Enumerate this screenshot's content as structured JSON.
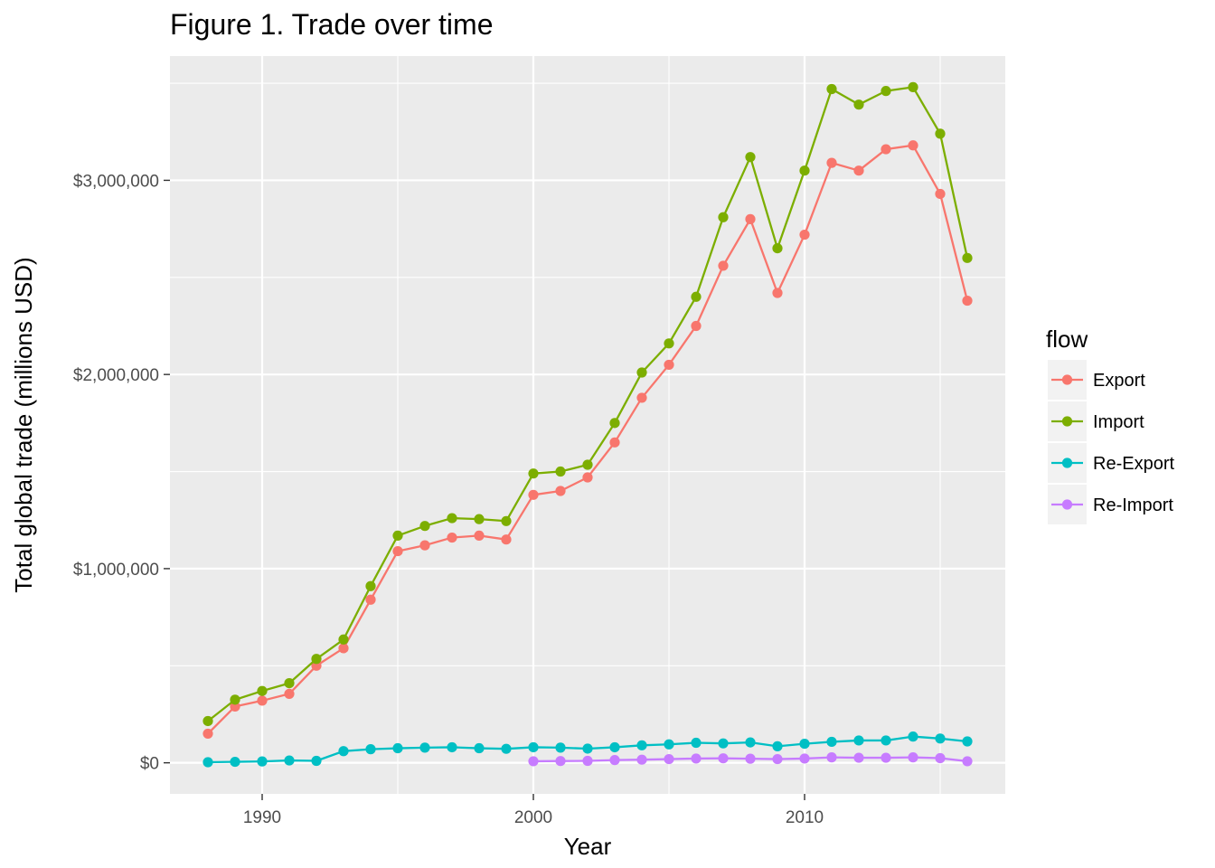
{
  "chart_data": {
    "type": "line",
    "title": "Figure 1. Trade over time",
    "xlabel": "Year",
    "ylabel": "Total global trade (millions USD)",
    "xlim": [
      1986.6,
      2017.4
    ],
    "ylim": [
      -160000,
      3640000
    ],
    "x_ticks": [
      1990,
      2000,
      2010
    ],
    "x_tick_labels": [
      "1990",
      "2000",
      "2010"
    ],
    "y_ticks": [
      0,
      1000000,
      2000000,
      3000000
    ],
    "y_tick_labels": [
      "$0",
      "$1,000,000",
      "$2,000,000",
      "$3,000,000"
    ],
    "grid": true,
    "legend": {
      "title": "flow",
      "position": "right"
    },
    "series": [
      {
        "name": "Export",
        "color": "#F8766D",
        "x": [
          1988,
          1989,
          1990,
          1991,
          1992,
          1993,
          1994,
          1995,
          1996,
          1997,
          1998,
          1999,
          2000,
          2001,
          2002,
          2003,
          2004,
          2005,
          2006,
          2007,
          2008,
          2009,
          2010,
          2011,
          2012,
          2013,
          2014,
          2015,
          2016
        ],
        "values": [
          150000,
          290000,
          320000,
          355000,
          500000,
          590000,
          840000,
          1090000,
          1120000,
          1160000,
          1170000,
          1150000,
          1380000,
          1400000,
          1470000,
          1650000,
          1880000,
          2050000,
          2250000,
          2560000,
          2800000,
          2420000,
          2720000,
          3090000,
          3050000,
          3160000,
          3180000,
          2930000,
          2380000
        ]
      },
      {
        "name": "Import",
        "color": "#7CAE00",
        "x": [
          1988,
          1989,
          1990,
          1991,
          1992,
          1993,
          1994,
          1995,
          1996,
          1997,
          1998,
          1999,
          2000,
          2001,
          2002,
          2003,
          2004,
          2005,
          2006,
          2007,
          2008,
          2009,
          2010,
          2011,
          2012,
          2013,
          2014,
          2015,
          2016
        ],
        "values": [
          215000,
          325000,
          370000,
          410000,
          535000,
          635000,
          910000,
          1170000,
          1220000,
          1260000,
          1255000,
          1245000,
          1490000,
          1500000,
          1535000,
          1750000,
          2010000,
          2160000,
          2400000,
          2810000,
          3120000,
          2650000,
          3050000,
          3470000,
          3390000,
          3460000,
          3480000,
          3240000,
          2600000
        ]
      },
      {
        "name": "Re-Export",
        "color": "#00BFC4",
        "x": [
          1988,
          1989,
          1990,
          1991,
          1992,
          1993,
          1994,
          1995,
          1996,
          1997,
          1998,
          1999,
          2000,
          2001,
          2002,
          2003,
          2004,
          2005,
          2006,
          2007,
          2008,
          2009,
          2010,
          2011,
          2012,
          2013,
          2014,
          2015,
          2016
        ],
        "values": [
          3000,
          5000,
          7000,
          12000,
          10000,
          60000,
          70000,
          75000,
          78000,
          80000,
          75000,
          72000,
          80000,
          78000,
          73000,
          80000,
          90000,
          95000,
          103000,
          100000,
          105000,
          85000,
          98000,
          108000,
          115000,
          115000,
          135000,
          125000,
          110000
        ]
      },
      {
        "name": "Re-Import",
        "color": "#C77CFF",
        "x": [
          2000,
          2001,
          2002,
          2003,
          2004,
          2005,
          2006,
          2007,
          2008,
          2009,
          2010,
          2011,
          2012,
          2013,
          2014,
          2015,
          2016
        ],
        "values": [
          8000,
          9000,
          10000,
          14000,
          16000,
          19000,
          22000,
          23000,
          21000,
          19000,
          22000,
          28000,
          26000,
          26000,
          28000,
          24000,
          8000
        ]
      }
    ]
  }
}
